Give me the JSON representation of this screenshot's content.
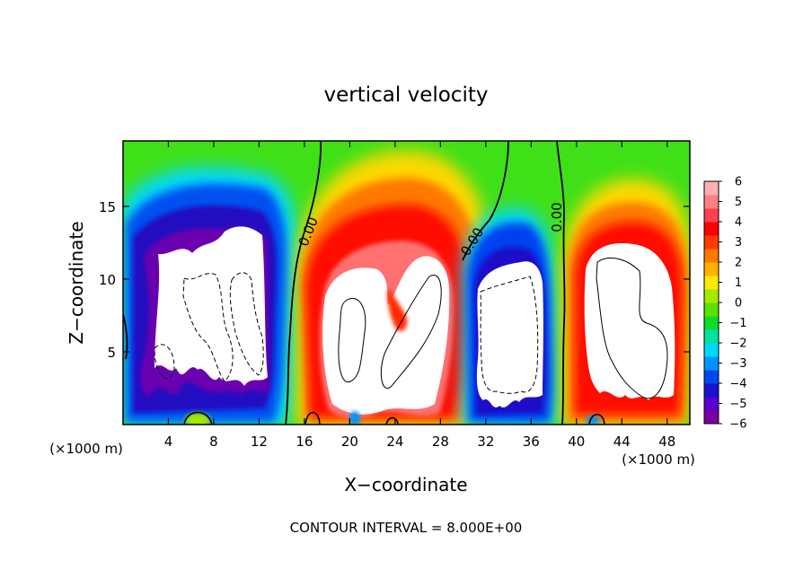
{
  "chart_data": {
    "type": "heatmap",
    "title": "vertical velocity",
    "xlabel": "X−coordinate",
    "ylabel": "Z−coordinate",
    "x_unit_left": "(×1000 m)",
    "x_unit_right": "(×1000 m)",
    "footer": "CONTOUR INTERVAL = 8.000E+00",
    "xlim": [
      0,
      50
    ],
    "ylim": [
      0,
      19.5
    ],
    "x_ticks": [
      4,
      8,
      12,
      16,
      20,
      24,
      28,
      32,
      36,
      40,
      44,
      48
    ],
    "x_tick_labels": [
      "4",
      "8",
      "12",
      "16",
      "20",
      "24",
      "28",
      "32",
      "36",
      "40",
      "44",
      "48"
    ],
    "y_ticks": [
      5,
      10,
      15
    ],
    "y_tick_labels": [
      "5",
      "10",
      "15"
    ],
    "colorbar": {
      "min": -6,
      "max": 6,
      "tick_values": [
        6,
        5,
        4,
        3,
        2,
        1,
        0,
        -1,
        -2,
        -3,
        -4,
        -5,
        -6
      ],
      "tick_labels": [
        "6",
        "5",
        "4",
        "3",
        "2",
        "1",
        "0",
        "−1",
        "−2",
        "−3",
        "−4",
        "−5",
        "−6"
      ],
      "colors": [
        "#7a00a0",
        "#5a00d0",
        "#1a10d0",
        "#0046f0",
        "#0096ff",
        "#00d8ff",
        "#00e0a0",
        "#10dc28",
        "#5ce000",
        "#a6e800",
        "#ffe800",
        "#ffb000",
        "#ff7800",
        "#ff3a00",
        "#ff0000",
        "#ff4050",
        "#ff8080",
        "#ffb0b0"
      ]
    },
    "contour_labels": [
      "0.00",
      "0.00",
      "0.00"
    ]
  }
}
